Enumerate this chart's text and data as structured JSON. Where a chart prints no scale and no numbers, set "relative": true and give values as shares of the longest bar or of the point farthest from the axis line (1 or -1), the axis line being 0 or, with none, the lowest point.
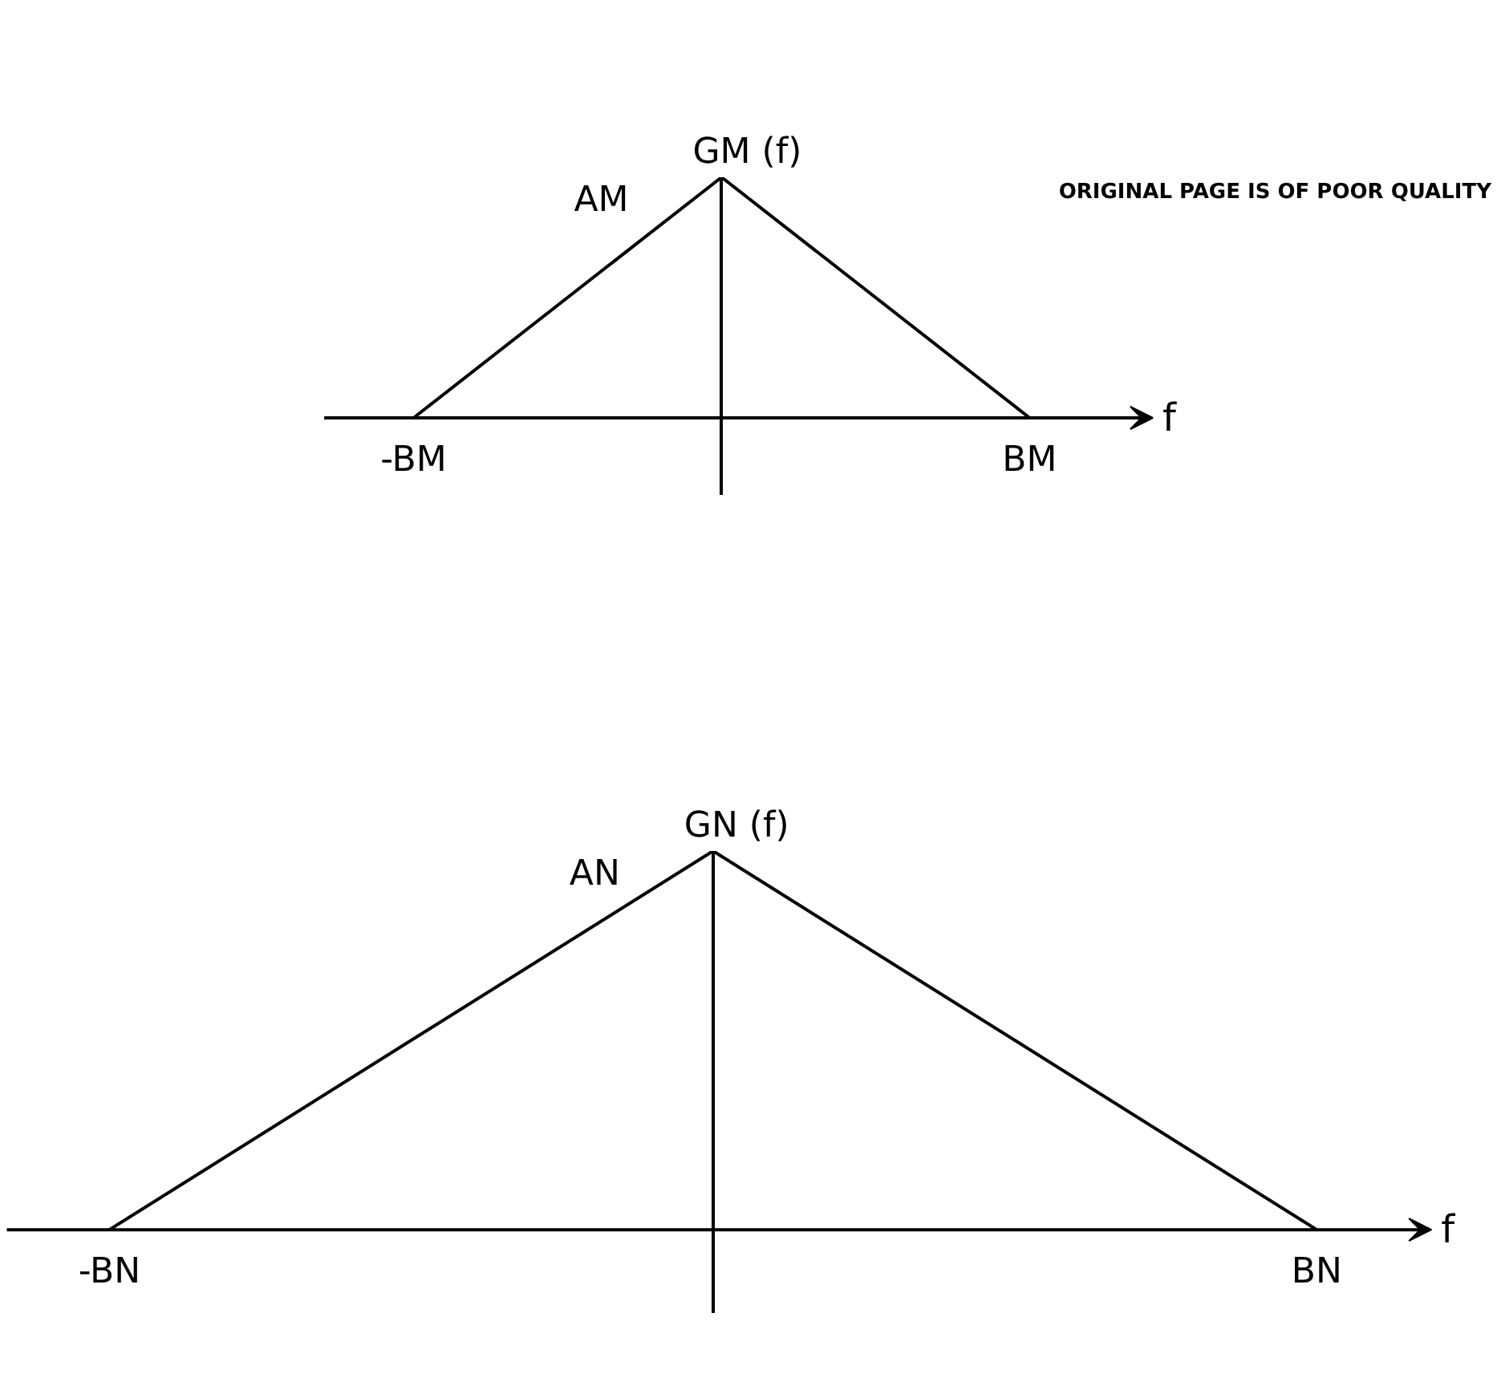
{
  "chart_data": [
    {
      "type": "line",
      "categories": [
        "-BM",
        null,
        "BM"
      ],
      "values": [
        0,
        1,
        0
      ],
      "relative": true,
      "color": "#000000",
      "xlabel": "f",
      "ylabel": "GM (f)",
      "annotations": [
        "AM",
        "ORIGINAL PAGE IS OF POOR QUALITY"
      ]
    },
    {
      "type": "line",
      "categories": [
        "-BN",
        null,
        "BN"
      ],
      "values": [
        0,
        1,
        0
      ],
      "relative": true,
      "color": "#000000",
      "xlabel": "f",
      "ylabel": "GN (f)",
      "annotations": [
        "AN"
      ]
    }
  ]
}
